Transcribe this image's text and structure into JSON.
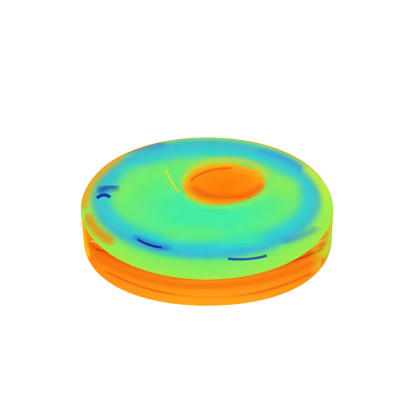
{
  "scene": {
    "background_color": "#ffffff",
    "object": "torus",
    "surface_coloring": "jet-colormap",
    "colormap": [
      "#1a1aa8",
      "#2a6cf0",
      "#22c8e8",
      "#3ef0a0",
      "#a8f040",
      "#f0e020",
      "#ff9a10",
      "#f05008",
      "#c02000"
    ]
  }
}
